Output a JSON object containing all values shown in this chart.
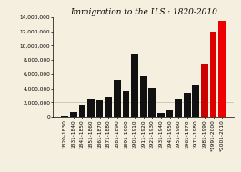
{
  "title": "Immigration to the U.S.: 1820-2010",
  "categories": [
    "1820-1830",
    "1831-1840",
    "1841-1850",
    "1851-1860",
    "1861-1870",
    "1871-1880",
    "1881-1890",
    "1891-1900",
    "1901-1910",
    "1911-1920",
    "1921-1930",
    "1931-1940",
    "1941-1950",
    "1951-1960",
    "1961-1970",
    "1971-1980",
    "1981-1990",
    "*1991-2000",
    "*2001-2010"
  ],
  "values": [
    151824,
    599125,
    1713251,
    2598214,
    2314824,
    2812191,
    5246613,
    3687564,
    8795386,
    5735811,
    4107209,
    528431,
    1035039,
    2515479,
    3321677,
    4493314,
    7338062,
    12000000,
    13500000
  ],
  "bar_colors": [
    "#111111",
    "#111111",
    "#111111",
    "#111111",
    "#111111",
    "#111111",
    "#111111",
    "#111111",
    "#111111",
    "#111111",
    "#111111",
    "#111111",
    "#111111",
    "#111111",
    "#111111",
    "#111111",
    "#cc0000",
    "#dd0000",
    "#ee0000"
  ],
  "ylim": [
    0,
    14000000
  ],
  "yticks": [
    0,
    2000000,
    4000000,
    6000000,
    8000000,
    10000000,
    12000000,
    14000000
  ],
  "background_color": "#f5efe0",
  "title_fontsize": 6.5,
  "tick_fontsize": 4.2
}
